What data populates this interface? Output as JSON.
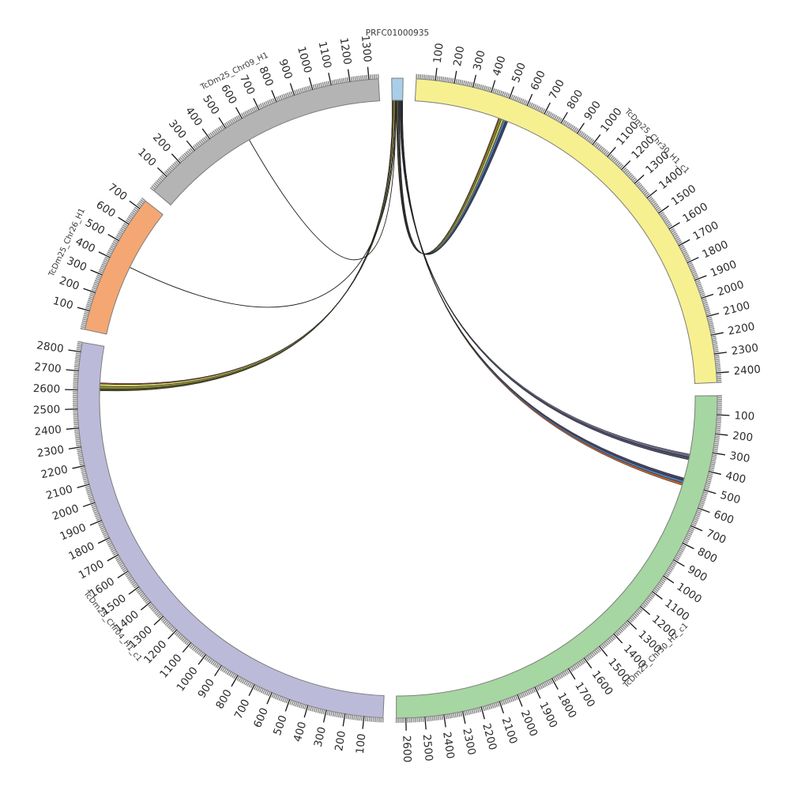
{
  "plot": {
    "title": "PRFC01000935",
    "background": "#ffffff"
  },
  "chart_data": {
    "type": "circos-synteny",
    "title": "PRFC01000935",
    "units": "kb-scale genomic coordinates, major ticks every 100, minor ticks every 10",
    "sectors": [
      {
        "id": "query",
        "name": "PRFC01000935",
        "length": 60,
        "color": "#a9cfe8",
        "show_ticks": false,
        "last_tick": 0
      },
      {
        "id": "chr30a",
        "name": "TcDm25_Chr30_H1_c1",
        "length": 2450,
        "color": "#f6f091",
        "show_ticks": true,
        "last_tick": 2400
      },
      {
        "id": "chr30b",
        "name": "TcDm25_Chr30_H2_c1",
        "length": 2650,
        "color": "#a6d6a1",
        "show_ticks": true,
        "last_tick": 2600
      },
      {
        "id": "chr04",
        "name": "TcDm25_Chr04_H1_c1",
        "length": 2850,
        "color": "#bcbad9",
        "show_ticks": true,
        "last_tick": 2800
      },
      {
        "id": "chr26",
        "name": "TcDm25_Chr26_H1",
        "length": 750,
        "color": "#f4a772",
        "show_ticks": true,
        "last_tick": 700
      },
      {
        "id": "chr09",
        "name": "TcDm25_Chr09_H1",
        "length": 1350,
        "color": "#b4b4b4",
        "show_ticks": true,
        "last_tick": 1300
      }
    ],
    "tick_style": {
      "major_interval": 100,
      "minor_interval": 10,
      "major_color": "#151515",
      "minor_color": "#8f8f8f",
      "label_color": "#2b2b2b",
      "band_stroke": "#7c7c7c",
      "name_color": "#3a3a3a"
    },
    "links": [
      {
        "type": "ribbon",
        "source": "query",
        "target": "chr04",
        "s": [
          0,
          4
        ],
        "t": [
          2598,
          2610
        ],
        "color": "#45451f"
      },
      {
        "type": "ribbon",
        "source": "query",
        "target": "chr04",
        "s": [
          4,
          10
        ],
        "t": [
          2610,
          2624
        ],
        "color": "#8b8b2f"
      },
      {
        "type": "ribbon",
        "source": "query",
        "target": "chr04",
        "s": [
          10,
          16
        ],
        "t": [
          2624,
          2637
        ],
        "color": "#d2d264"
      },
      {
        "type": "ribbon",
        "source": "query",
        "target": "chr04",
        "s": [
          16,
          19
        ],
        "t": [
          2637,
          2643
        ],
        "color": "#993c2a"
      },
      {
        "type": "line",
        "source": "query",
        "target": "chr09",
        "s": [
          20,
          22
        ],
        "t": [
          574,
          580
        ],
        "color": "#1a1a1a"
      },
      {
        "type": "line",
        "source": "query",
        "target": "chr26",
        "s": [
          22,
          24
        ],
        "t": [
          396,
          402
        ],
        "color": "#1a1a1a"
      },
      {
        "type": "ribbon",
        "source": "query",
        "target": "chr30a",
        "s": [
          24,
          27
        ],
        "t": [
          481,
          486
        ],
        "color": "#bb5c2a"
      },
      {
        "type": "ribbon",
        "source": "query",
        "target": "chr30a",
        "s": [
          27,
          31
        ],
        "t": [
          486,
          499
        ],
        "color": "#7d7d28"
      },
      {
        "type": "ribbon",
        "source": "query",
        "target": "chr30a",
        "s": [
          31,
          35
        ],
        "t": [
          499,
          511
        ],
        "color": "#cfc253"
      },
      {
        "type": "ribbon",
        "source": "query",
        "target": "chr30a",
        "s": [
          35,
          39
        ],
        "t": [
          511,
          524
        ],
        "color": "#4878ae"
      },
      {
        "type": "ribbon",
        "source": "query",
        "target": "chr30a",
        "s": [
          39,
          43
        ],
        "t": [
          524,
          537
        ],
        "color": "#2d3a68"
      },
      {
        "type": "ribbon",
        "source": "query",
        "target": "chr30b",
        "s": [
          44,
          48
        ],
        "t": [
          330,
          347
        ],
        "color": "#62627e"
      },
      {
        "type": "ribbon",
        "source": "query",
        "target": "chr30b",
        "s": [
          48,
          52
        ],
        "t": [
          347,
          362
        ],
        "color": "#43435f"
      },
      {
        "type": "ribbon",
        "source": "query",
        "target": "chr30b",
        "s": [
          52,
          55
        ],
        "t": [
          468,
          483
        ],
        "color": "#3a3a5c"
      },
      {
        "type": "ribbon",
        "source": "query",
        "target": "chr30b",
        "s": [
          55,
          58
        ],
        "t": [
          483,
          497
        ],
        "color": "#4878ae"
      },
      {
        "type": "ribbon",
        "source": "query",
        "target": "chr30b",
        "s": [
          58,
          60
        ],
        "t": [
          497,
          510
        ],
        "color": "#bb5c2a"
      }
    ],
    "layout": {
      "note": "sectors arranged clockwise from top starting with query; equal gaps between sectors"
    }
  }
}
